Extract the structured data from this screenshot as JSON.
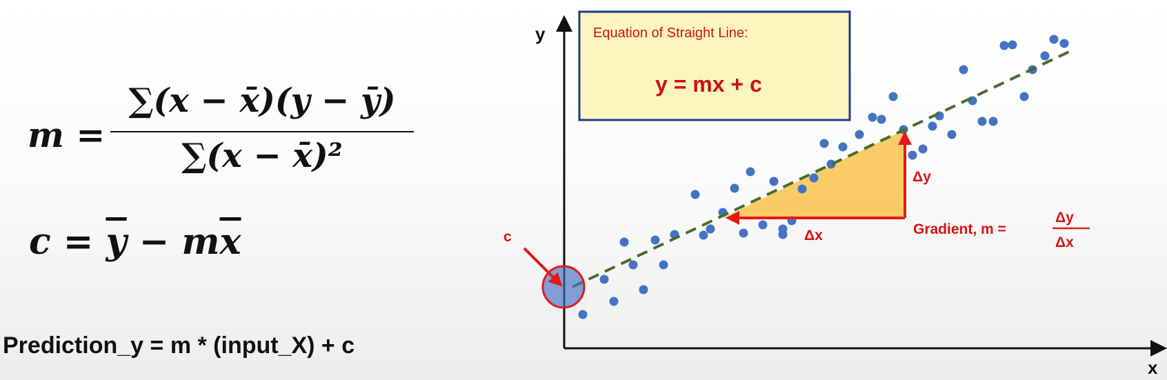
{
  "formulas": {
    "m_lhs": "m =",
    "m_num": "∑(x − x̄)(y − ȳ)",
    "m_den": "∑(x − x̄)²",
    "c_lhs": "c = ",
    "c_ybar": "y",
    "c_mid": " − m",
    "c_xbar": "x",
    "prediction": "Prediction_y = m * (input_X) + c"
  },
  "diagram": {
    "box_title": "Equation of Straight Line:",
    "box_equation": "y = mx + c",
    "y_axis": "y",
    "x_axis": "x",
    "c_label": "c",
    "delta_y": "Δy",
    "delta_x": "Δx",
    "gradient_label": "Gradient, m =",
    "frac_num": "Δy",
    "frac_den": "Δx"
  },
  "colors": {
    "point": "#4472c4",
    "fit_line": "#4a6a2a",
    "accent_red": "#e21a1a",
    "triangle": "#f8c34c",
    "box_fill": "#fdf5c0",
    "box_border": "#1c3a8a"
  }
}
